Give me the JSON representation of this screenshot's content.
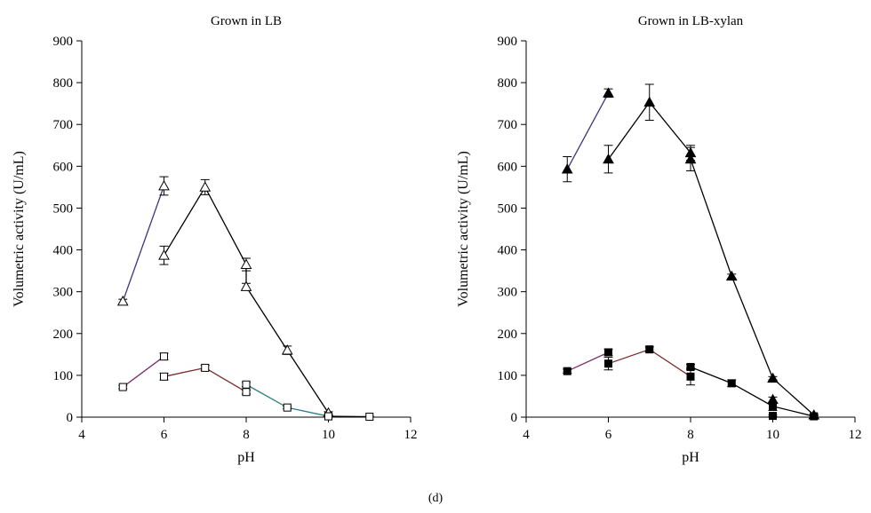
{
  "figure": {
    "caption": "(d)"
  },
  "chart_data": [
    {
      "type": "line",
      "title": "Grown in LB",
      "xlabel": "pH",
      "ylabel": "Volumetric activity (U/mL)",
      "xlim": [
        4,
        12
      ],
      "ylim": [
        0,
        900
      ],
      "xticks": [
        "4",
        "6",
        "8",
        "10",
        "12"
      ],
      "yticks": [
        "0",
        "100",
        "200",
        "300",
        "400",
        "500",
        "600",
        "700",
        "800",
        "900"
      ],
      "grid": false,
      "series": [
        {
          "color": "#3b3680",
          "marker": "triangle-open",
          "x": [
            5,
            6
          ],
          "y": [
            277,
            553
          ],
          "err": [
            5,
            22
          ]
        },
        {
          "color": "#000000",
          "marker": "triangle-open",
          "x": [
            6,
            7,
            8,
            8,
            9,
            10
          ],
          "y": [
            387,
            550,
            365,
            312,
            160,
            10
          ],
          "err": [
            22,
            18,
            15,
            8,
            10,
            3
          ]
        },
        {
          "color": "#7a2f6e",
          "marker": "square-open",
          "x": [
            5,
            6
          ],
          "y": [
            72,
            145
          ],
          "err": [
            4,
            8
          ]
        },
        {
          "color": "#7a2a2a",
          "marker": "square-open",
          "x": [
            6,
            7,
            8
          ],
          "y": [
            97,
            118,
            60
          ],
          "err": [
            8,
            6,
            5
          ]
        },
        {
          "color": "#2f7f80",
          "marker": "square-open",
          "x": [
            8,
            9,
            10
          ],
          "y": [
            78,
            23,
            2
          ],
          "err": [
            5,
            3,
            2
          ]
        },
        {
          "color": "#000000",
          "marker": "square-open",
          "x": [
            10,
            11
          ],
          "y": [
            2,
            1
          ],
          "err": [
            2,
            1
          ]
        }
      ]
    },
    {
      "type": "line",
      "title": "Grown in LB-xylan",
      "xlabel": "pH",
      "ylabel": "Volumetric activity (U/mL)",
      "xlim": [
        4,
        12
      ],
      "ylim": [
        0,
        900
      ],
      "xticks": [
        "4",
        "6",
        "8",
        "10",
        "12"
      ],
      "yticks": [
        "0",
        "100",
        "200",
        "300",
        "400",
        "500",
        "600",
        "700",
        "800",
        "900"
      ],
      "grid": false,
      "series": [
        {
          "color": "#3b3680",
          "marker": "triangle-filled",
          "x": [
            5,
            6
          ],
          "y": [
            593,
            775
          ],
          "err": [
            30,
            10
          ]
        },
        {
          "color": "#000000",
          "marker": "triangle-filled",
          "x": [
            6,
            7,
            8,
            8,
            9,
            10,
            11
          ],
          "y": [
            617,
            753,
            632,
            617,
            337,
            93,
            5
          ],
          "err": [
            33,
            43,
            18,
            28,
            5,
            4,
            2
          ]
        },
        {
          "color": "#7a2f6e",
          "marker": "square-filled",
          "x": [
            5,
            6
          ],
          "y": [
            110,
            155
          ],
          "err": [
            5,
            8
          ]
        },
        {
          "color": "#7a2a2a",
          "marker": "square-filled",
          "x": [
            6,
            7,
            8
          ],
          "y": [
            128,
            162,
            97
          ],
          "err": [
            15,
            6,
            20
          ]
        },
        {
          "color": "#000000",
          "marker": "square-filled",
          "x": [
            8,
            9,
            10,
            11
          ],
          "y": [
            120,
            81,
            26,
            2
          ],
          "err": [
            6,
            8,
            10,
            2
          ]
        },
        {
          "color": "#000000",
          "marker": "square-filled",
          "x": [
            10
          ],
          "y": [
            3
          ],
          "err": [
            2
          ]
        },
        {
          "color": "#000000",
          "marker": "triangle-filled",
          "x": [
            10
          ],
          "y": [
            42
          ],
          "err": [
            6
          ]
        }
      ]
    }
  ]
}
